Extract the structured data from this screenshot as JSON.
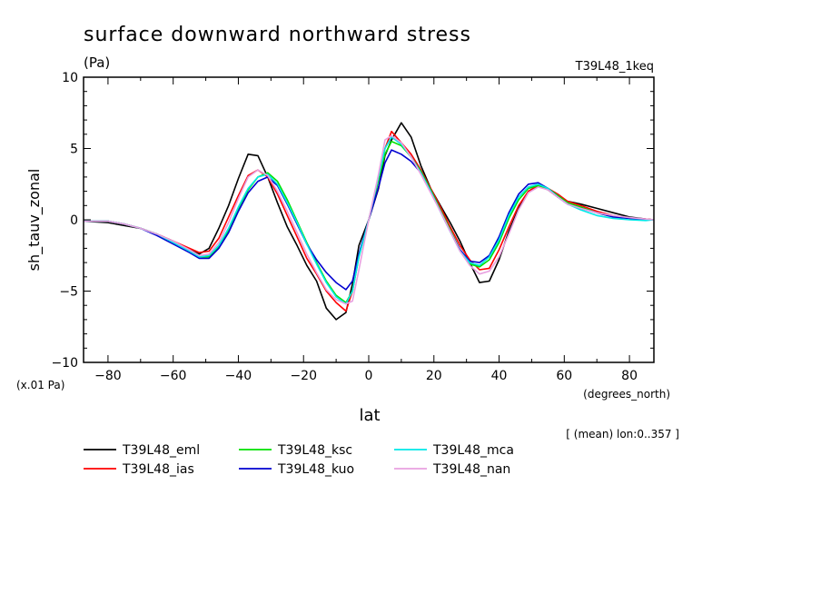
{
  "chart_data": {
    "type": "line",
    "title": "surface downward northward stress",
    "units_label": "(Pa)",
    "experiment_label": "T39L48_1keq",
    "ylabel": "sh_tauv_zonal",
    "yscale_note": "(x.01 Pa)",
    "xlabel": "lat",
    "xunits_label": "(degrees_north)",
    "averaging_note": "[ (mean) lon:0..357 ]",
    "xlim": [
      -87.5,
      87.5
    ],
    "ylim": [
      -10,
      10
    ],
    "xticks": [
      -80,
      -60,
      -40,
      -20,
      0,
      20,
      40,
      60,
      80
    ],
    "xtick_labels": [
      "−80",
      "−60",
      "−40",
      "−20",
      "0",
      "20",
      "40",
      "60",
      "80"
    ],
    "yticks": [
      -10,
      -5,
      0,
      5,
      10
    ],
    "ytick_labels": [
      "−10",
      "−5",
      "0",
      "5",
      "10"
    ],
    "legend_position": "bottom",
    "series": [
      {
        "name": "T39L48_eml",
        "color": "#000000",
        "points": [
          [
            -87.5,
            -0.1
          ],
          [
            -80,
            -0.2
          ],
          [
            -75,
            -0.4
          ],
          [
            -70,
            -0.6
          ],
          [
            -65,
            -1.0
          ],
          [
            -60,
            -1.5
          ],
          [
            -55,
            -2.1
          ],
          [
            -52,
            -2.4
          ],
          [
            -49,
            -2.0
          ],
          [
            -46,
            -0.6
          ],
          [
            -43,
            1.0
          ],
          [
            -40,
            2.9
          ],
          [
            -37,
            4.6
          ],
          [
            -34,
            4.5
          ],
          [
            -31,
            3.0
          ],
          [
            -28,
            1.2
          ],
          [
            -25,
            -0.5
          ],
          [
            -22,
            -1.8
          ],
          [
            -19,
            -3.2
          ],
          [
            -16,
            -4.3
          ],
          [
            -13,
            -6.2
          ],
          [
            -10,
            -7.0
          ],
          [
            -7,
            -6.5
          ],
          [
            -5,
            -4.5
          ],
          [
            -3,
            -1.8
          ],
          [
            0,
            0
          ],
          [
            3,
            2.2
          ],
          [
            5,
            4.5
          ],
          [
            7,
            5.6
          ],
          [
            10,
            6.8
          ],
          [
            13,
            5.8
          ],
          [
            16,
            3.8
          ],
          [
            19,
            2.2
          ],
          [
            22,
            1.0
          ],
          [
            25,
            -0.2
          ],
          [
            28,
            -1.5
          ],
          [
            31,
            -3.0
          ],
          [
            34,
            -4.4
          ],
          [
            37,
            -4.3
          ],
          [
            40,
            -2.8
          ],
          [
            43,
            -0.8
          ],
          [
            46,
            0.8
          ],
          [
            49,
            2.0
          ],
          [
            52,
            2.4
          ],
          [
            55,
            2.1
          ],
          [
            58,
            1.6
          ],
          [
            61,
            1.3
          ],
          [
            65,
            1.1
          ],
          [
            70,
            0.8
          ],
          [
            75,
            0.5
          ],
          [
            80,
            0.2
          ],
          [
            85,
            0.05
          ],
          [
            87.5,
            0
          ]
        ]
      },
      {
        "name": "T39L48_ias",
        "color": "#ff0000",
        "points": [
          [
            -87.5,
            -0.1
          ],
          [
            -80,
            -0.1
          ],
          [
            -75,
            -0.3
          ],
          [
            -70,
            -0.6
          ],
          [
            -65,
            -1.0
          ],
          [
            -60,
            -1.5
          ],
          [
            -55,
            -2.0
          ],
          [
            -52,
            -2.3
          ],
          [
            -49,
            -2.2
          ],
          [
            -46,
            -1.3
          ],
          [
            -43,
            0.2
          ],
          [
            -40,
            1.7
          ],
          [
            -37,
            3.1
          ],
          [
            -34,
            3.5
          ],
          [
            -31,
            3.0
          ],
          [
            -28,
            1.8
          ],
          [
            -25,
            0.3
          ],
          [
            -22,
            -1.2
          ],
          [
            -19,
            -2.7
          ],
          [
            -16,
            -3.8
          ],
          [
            -13,
            -5.0
          ],
          [
            -10,
            -5.8
          ],
          [
            -7,
            -6.4
          ],
          [
            -5,
            -5.0
          ],
          [
            -3,
            -2.5
          ],
          [
            0,
            0
          ],
          [
            3,
            2.8
          ],
          [
            5,
            5.0
          ],
          [
            7,
            6.2
          ],
          [
            10,
            5.4
          ],
          [
            13,
            4.6
          ],
          [
            16,
            3.5
          ],
          [
            19,
            2.2
          ],
          [
            22,
            0.9
          ],
          [
            25,
            -0.5
          ],
          [
            28,
            -1.8
          ],
          [
            31,
            -2.8
          ],
          [
            34,
            -3.5
          ],
          [
            37,
            -3.4
          ],
          [
            40,
            -2.1
          ],
          [
            43,
            -0.5
          ],
          [
            46,
            1.0
          ],
          [
            49,
            2.0
          ],
          [
            52,
            2.4
          ],
          [
            55,
            2.2
          ],
          [
            58,
            1.8
          ],
          [
            61,
            1.3
          ],
          [
            65,
            1.0
          ],
          [
            70,
            0.6
          ],
          [
            75,
            0.3
          ],
          [
            80,
            0.1
          ],
          [
            85,
            0.05
          ],
          [
            87.5,
            0
          ]
        ]
      },
      {
        "name": "T39L48_ksc",
        "color": "#00e000",
        "points": [
          [
            -87.5,
            -0.1
          ],
          [
            -80,
            -0.1
          ],
          [
            -75,
            -0.3
          ],
          [
            -70,
            -0.6
          ],
          [
            -65,
            -1.0
          ],
          [
            -60,
            -1.6
          ],
          [
            -55,
            -2.2
          ],
          [
            -52,
            -2.6
          ],
          [
            -49,
            -2.6
          ],
          [
            -46,
            -1.9
          ],
          [
            -43,
            -0.7
          ],
          [
            -40,
            0.8
          ],
          [
            -37,
            2.1
          ],
          [
            -34,
            3.0
          ],
          [
            -31,
            3.3
          ],
          [
            -28,
            2.7
          ],
          [
            -25,
            1.4
          ],
          [
            -22,
            -0.1
          ],
          [
            -19,
            -1.6
          ],
          [
            -16,
            -3.0
          ],
          [
            -13,
            -4.3
          ],
          [
            -10,
            -5.3
          ],
          [
            -7,
            -5.8
          ],
          [
            -5,
            -5.0
          ],
          [
            -3,
            -2.6
          ],
          [
            0,
            0
          ],
          [
            3,
            2.8
          ],
          [
            5,
            4.6
          ],
          [
            7,
            5.5
          ],
          [
            10,
            5.2
          ],
          [
            13,
            4.4
          ],
          [
            16,
            3.4
          ],
          [
            19,
            2.1
          ],
          [
            22,
            0.7
          ],
          [
            25,
            -0.7
          ],
          [
            28,
            -2.1
          ],
          [
            31,
            -3.1
          ],
          [
            34,
            -3.3
          ],
          [
            37,
            -2.8
          ],
          [
            40,
            -1.6
          ],
          [
            43,
            0.1
          ],
          [
            46,
            1.4
          ],
          [
            49,
            2.2
          ],
          [
            52,
            2.4
          ],
          [
            55,
            2.2
          ],
          [
            58,
            1.7
          ],
          [
            61,
            1.2
          ],
          [
            65,
            0.9
          ],
          [
            70,
            0.5
          ],
          [
            75,
            0.2
          ],
          [
            80,
            0.1
          ],
          [
            85,
            0.0
          ],
          [
            87.5,
            0
          ]
        ]
      },
      {
        "name": "T39L48_kuo",
        "color": "#0000d0",
        "points": [
          [
            -87.5,
            -0.1
          ],
          [
            -80,
            -0.1
          ],
          [
            -75,
            -0.3
          ],
          [
            -70,
            -0.6
          ],
          [
            -65,
            -1.1
          ],
          [
            -60,
            -1.7
          ],
          [
            -55,
            -2.3
          ],
          [
            -52,
            -2.7
          ],
          [
            -49,
            -2.7
          ],
          [
            -46,
            -2.0
          ],
          [
            -43,
            -0.9
          ],
          [
            -40,
            0.6
          ],
          [
            -37,
            1.9
          ],
          [
            -34,
            2.7
          ],
          [
            -31,
            3.0
          ],
          [
            -28,
            2.4
          ],
          [
            -25,
            1.1
          ],
          [
            -22,
            -0.3
          ],
          [
            -19,
            -1.7
          ],
          [
            -16,
            -2.8
          ],
          [
            -13,
            -3.7
          ],
          [
            -10,
            -4.4
          ],
          [
            -7,
            -4.9
          ],
          [
            -5,
            -4.3
          ],
          [
            -3,
            -2.4
          ],
          [
            0,
            0
          ],
          [
            3,
            2.3
          ],
          [
            5,
            4.0
          ],
          [
            7,
            4.9
          ],
          [
            10,
            4.6
          ],
          [
            13,
            4.1
          ],
          [
            16,
            3.3
          ],
          [
            19,
            2.0
          ],
          [
            22,
            0.6
          ],
          [
            25,
            -0.8
          ],
          [
            28,
            -2.1
          ],
          [
            31,
            -2.9
          ],
          [
            34,
            -3.0
          ],
          [
            37,
            -2.5
          ],
          [
            40,
            -1.2
          ],
          [
            43,
            0.5
          ],
          [
            46,
            1.8
          ],
          [
            49,
            2.5
          ],
          [
            52,
            2.6
          ],
          [
            55,
            2.2
          ],
          [
            58,
            1.6
          ],
          [
            61,
            1.1
          ],
          [
            65,
            0.8
          ],
          [
            70,
            0.5
          ],
          [
            75,
            0.2
          ],
          [
            80,
            0.1
          ],
          [
            85,
            0.0
          ],
          [
            87.5,
            0
          ]
        ]
      },
      {
        "name": "T39L48_mca",
        "color": "#00e8e8",
        "points": [
          [
            -87.5,
            -0.1
          ],
          [
            -80,
            -0.1
          ],
          [
            -75,
            -0.3
          ],
          [
            -70,
            -0.6
          ],
          [
            -65,
            -1.0
          ],
          [
            -60,
            -1.6
          ],
          [
            -55,
            -2.2
          ],
          [
            -52,
            -2.6
          ],
          [
            -49,
            -2.5
          ],
          [
            -46,
            -1.8
          ],
          [
            -43,
            -0.6
          ],
          [
            -40,
            0.9
          ],
          [
            -37,
            2.2
          ],
          [
            -34,
            3.0
          ],
          [
            -31,
            3.2
          ],
          [
            -28,
            2.5
          ],
          [
            -25,
            1.2
          ],
          [
            -22,
            -0.2
          ],
          [
            -19,
            -1.7
          ],
          [
            -16,
            -3.1
          ],
          [
            -13,
            -4.4
          ],
          [
            -10,
            -5.4
          ],
          [
            -7,
            -5.9
          ],
          [
            -5,
            -5.0
          ],
          [
            -3,
            -2.6
          ],
          [
            0,
            0
          ],
          [
            3,
            3.0
          ],
          [
            5,
            5.0
          ],
          [
            7,
            5.8
          ],
          [
            10,
            5.3
          ],
          [
            13,
            4.4
          ],
          [
            16,
            3.3
          ],
          [
            19,
            2.0
          ],
          [
            22,
            0.6
          ],
          [
            25,
            -0.8
          ],
          [
            28,
            -2.2
          ],
          [
            31,
            -3.0
          ],
          [
            34,
            -3.2
          ],
          [
            37,
            -2.6
          ],
          [
            40,
            -1.4
          ],
          [
            43,
            0.3
          ],
          [
            46,
            1.6
          ],
          [
            49,
            2.3
          ],
          [
            52,
            2.5
          ],
          [
            55,
            2.2
          ],
          [
            58,
            1.6
          ],
          [
            61,
            1.1
          ],
          [
            65,
            0.7
          ],
          [
            70,
            0.3
          ],
          [
            75,
            0.1
          ],
          [
            80,
            0.0
          ],
          [
            85,
            -0.05
          ],
          [
            87.5,
            0
          ]
        ]
      },
      {
        "name": "T39L48_nan",
        "color": "#e8a0e0",
        "points": [
          [
            -87.5,
            -0.1
          ],
          [
            -80,
            -0.1
          ],
          [
            -75,
            -0.3
          ],
          [
            -70,
            -0.6
          ],
          [
            -65,
            -1.0
          ],
          [
            -60,
            -1.5
          ],
          [
            -55,
            -2.1
          ],
          [
            -52,
            -2.5
          ],
          [
            -49,
            -2.4
          ],
          [
            -46,
            -1.6
          ],
          [
            -43,
            -0.2
          ],
          [
            -40,
            1.5
          ],
          [
            -37,
            3.0
          ],
          [
            -34,
            3.5
          ],
          [
            -31,
            3.1
          ],
          [
            -28,
            2.0
          ],
          [
            -25,
            0.6
          ],
          [
            -22,
            -0.9
          ],
          [
            -19,
            -2.4
          ],
          [
            -16,
            -3.7
          ],
          [
            -13,
            -4.9
          ],
          [
            -10,
            -5.6
          ],
          [
            -7,
            -5.9
          ],
          [
            -5,
            -5.7
          ],
          [
            -3,
            -3.5
          ],
          [
            0,
            0
          ],
          [
            3,
            3.2
          ],
          [
            5,
            5.6
          ],
          [
            7,
            5.9
          ],
          [
            10,
            5.4
          ],
          [
            13,
            4.4
          ],
          [
            16,
            3.2
          ],
          [
            19,
            1.9
          ],
          [
            22,
            0.6
          ],
          [
            25,
            -0.8
          ],
          [
            28,
            -2.2
          ],
          [
            31,
            -3.2
          ],
          [
            34,
            -3.8
          ],
          [
            37,
            -3.6
          ],
          [
            40,
            -2.6
          ],
          [
            43,
            -1.0
          ],
          [
            46,
            0.7
          ],
          [
            49,
            1.9
          ],
          [
            52,
            2.3
          ],
          [
            55,
            2.1
          ],
          [
            58,
            1.6
          ],
          [
            61,
            1.1
          ],
          [
            65,
            0.8
          ],
          [
            70,
            0.5
          ],
          [
            75,
            0.3
          ],
          [
            80,
            0.15
          ],
          [
            85,
            0.05
          ],
          [
            87.5,
            0
          ]
        ]
      }
    ]
  }
}
